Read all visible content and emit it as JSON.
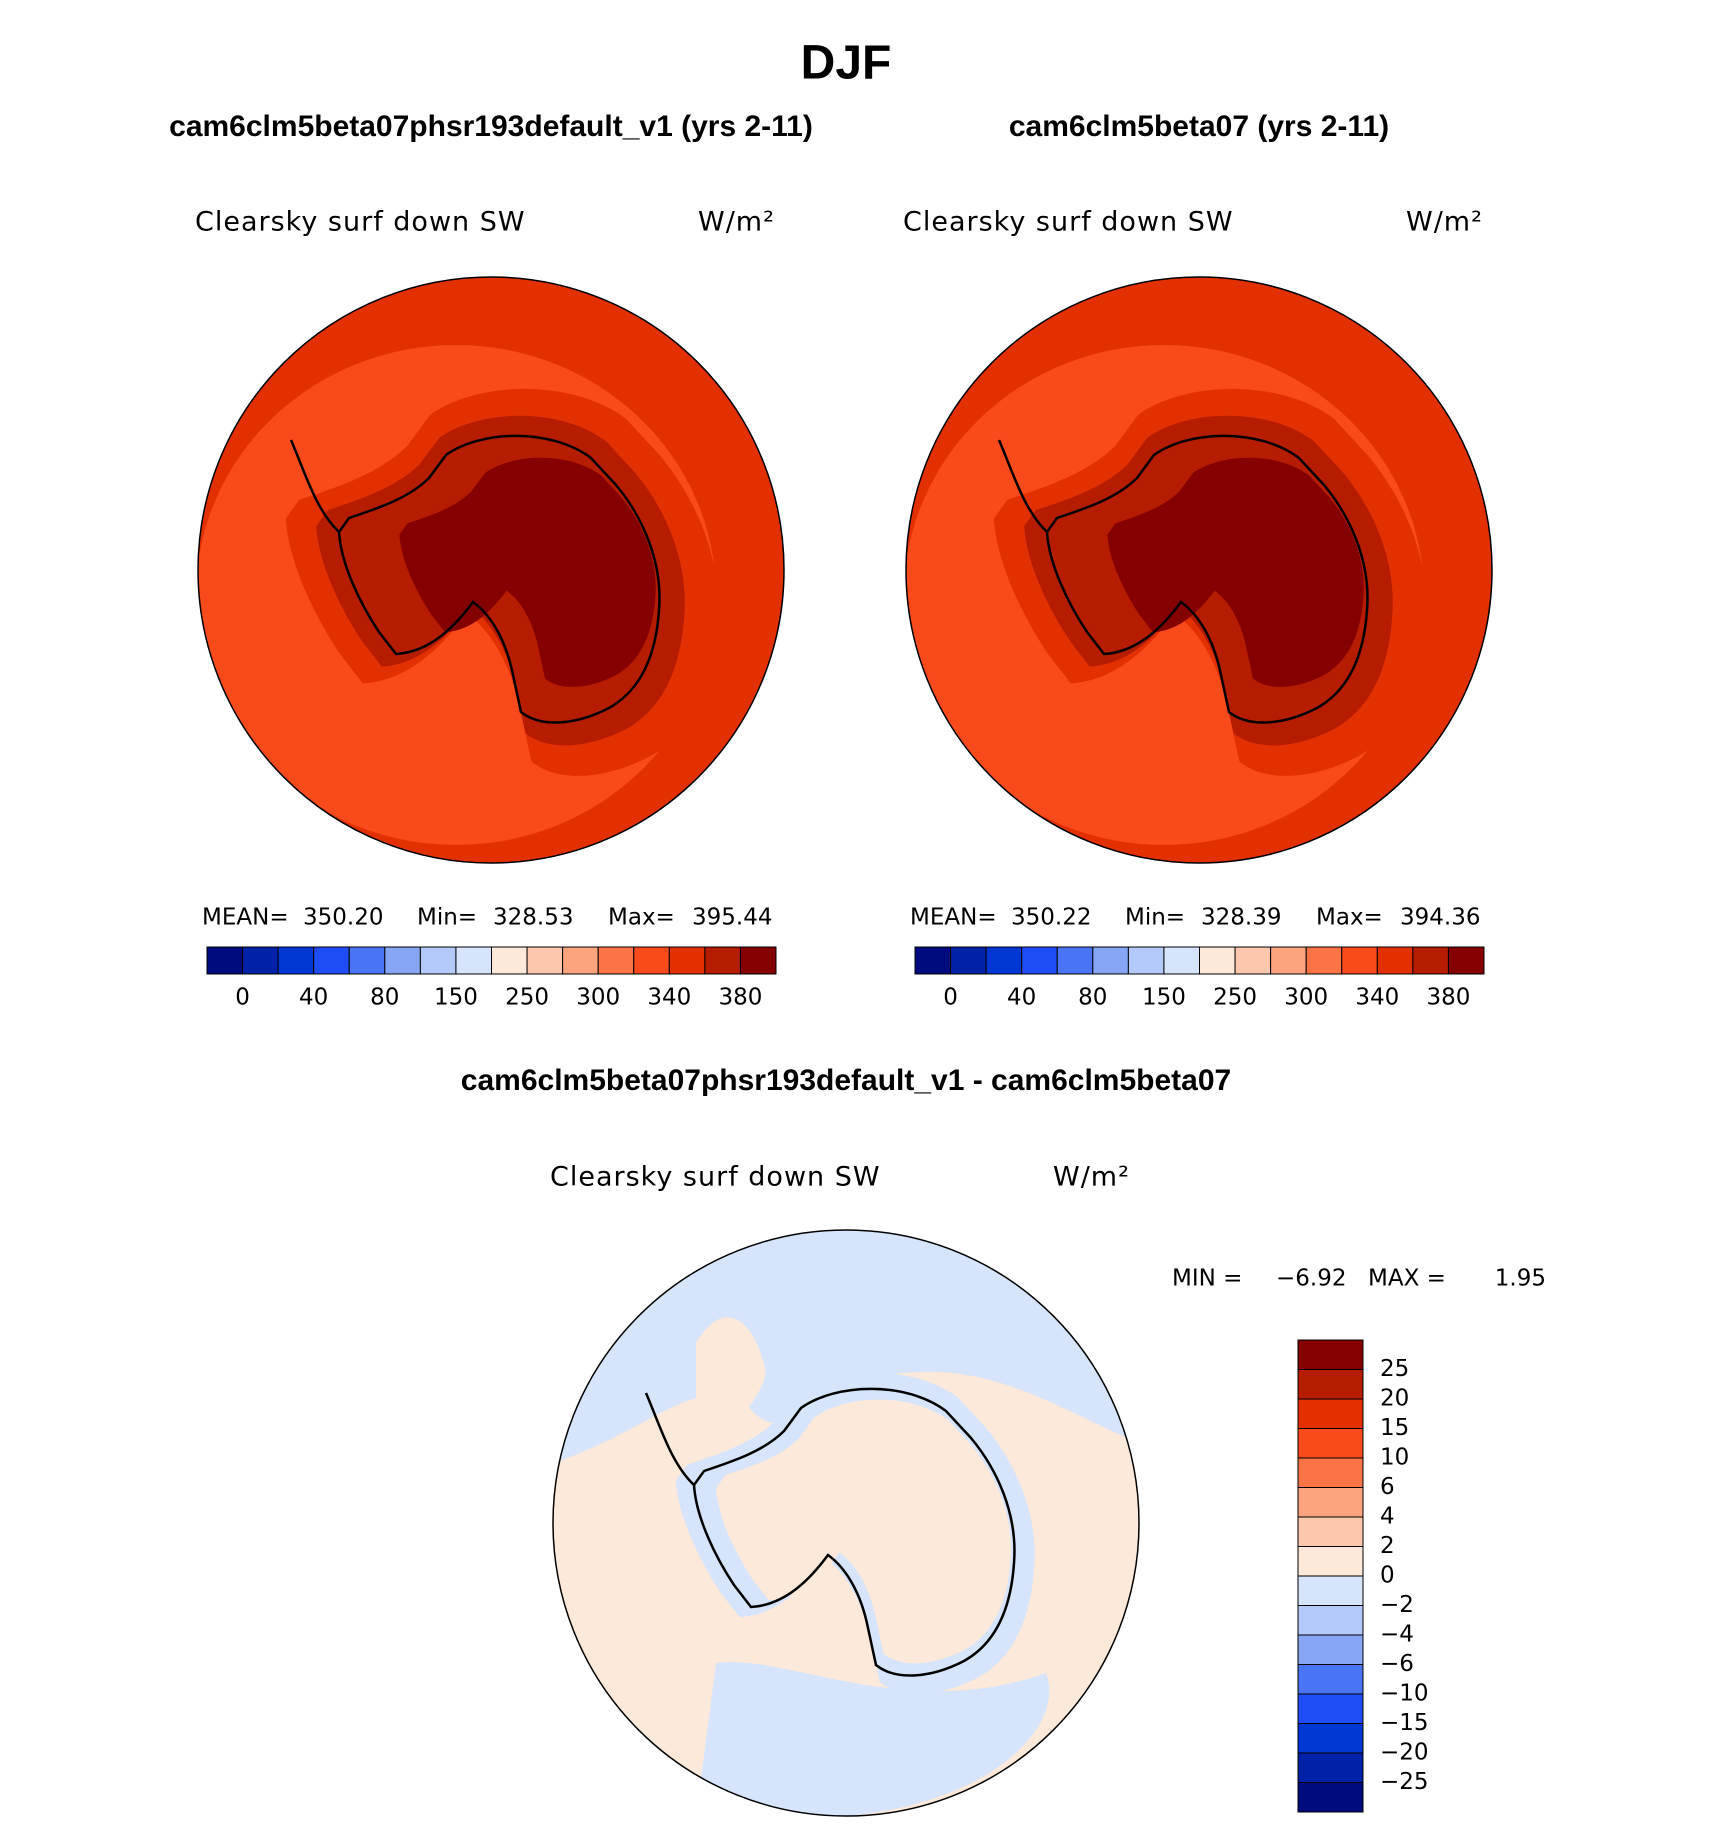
{
  "title": "DJF",
  "panels": [
    {
      "title": "cam6clm5beta07phsr193default_v1 (yrs 2-11)",
      "field": "Clearsky surf down SW",
      "units": "W/m²",
      "stats": [
        {
          "label": "MEAN=",
          "value": "350.20"
        },
        {
          "label": "Min=",
          "value": "328.53"
        },
        {
          "label": "Max=",
          "value": "395.44"
        }
      ]
    },
    {
      "title": "cam6clm5beta07 (yrs 2-11)",
      "field": "Clearsky surf down SW",
      "units": "W/m²",
      "stats": [
        {
          "label": "MEAN=",
          "value": "350.22"
        },
        {
          "label": "Min=",
          "value": "328.39"
        },
        {
          "label": "Max=",
          "value": "394.36"
        }
      ]
    }
  ],
  "colorbar": {
    "colors": [
      "#000c7d",
      "#0022a8",
      "#0036d2",
      "#1e4df5",
      "#4a74f4",
      "#86a6f5",
      "#b3c9f8",
      "#d6e5fb",
      "#fde9d9",
      "#fdc7ae",
      "#fca47e",
      "#fb7446",
      "#f94a1c",
      "#e33000",
      "#b51c00",
      "#850000"
    ],
    "labels": [
      "0",
      "40",
      "80",
      "150",
      "250",
      "300",
      "340",
      "380"
    ]
  },
  "difference": {
    "title": "cam6clm5beta07phsr193default_v1 - cam6clm5beta07",
    "field": "Clearsky surf down SW",
    "units": "W/m²",
    "stats": [
      {
        "label": "MIN =",
        "value": "−6.92"
      },
      {
        "label": "MAX =",
        "value": "1.95"
      }
    ],
    "colorbar": {
      "colors": [
        "#850000",
        "#b51c00",
        "#e33000",
        "#f94a1c",
        "#fb7446",
        "#fca47e",
        "#fdc7ae",
        "#fde9d9",
        "#d6e5fb",
        "#b3c9f8",
        "#86a6f5",
        "#4a74f4",
        "#1e4df5",
        "#0036d2",
        "#0022a8",
        "#000c7d"
      ],
      "labels": [
        "25",
        "20",
        "15",
        "10",
        "6",
        "4",
        "2",
        "0",
        "−2",
        "−4",
        "−6",
        "−10",
        "−15",
        "−20",
        "−25"
      ]
    }
  }
}
